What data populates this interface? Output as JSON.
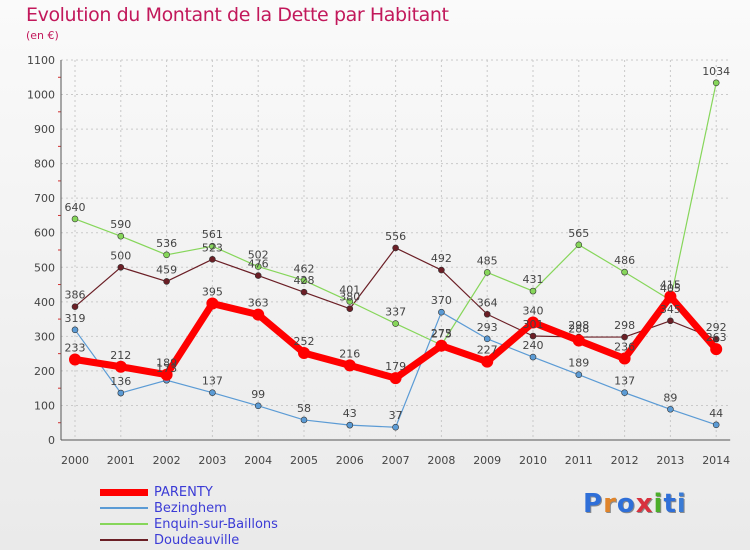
{
  "title": "Evolution du Montant de la Dette par Habitant",
  "subtitle": "(en €)",
  "brand": "Proxiti",
  "chart_data": {
    "type": "line",
    "title": "Evolution du Montant de la Dette par Habitant",
    "ylabel": "(en €)",
    "ylim": [
      0,
      1100
    ],
    "yticks": [
      0,
      100,
      200,
      300,
      400,
      500,
      600,
      700,
      800,
      900,
      1000,
      1100
    ],
    "grid": true,
    "legend_position": "bottom-left",
    "categories": [
      "2000",
      "2001",
      "2002",
      "2003",
      "2004",
      "2005",
      "2006",
      "2007",
      "2008",
      "2009",
      "2010",
      "2011",
      "2012",
      "2013",
      "2014"
    ],
    "series": [
      {
        "name": "Doudeauville",
        "color": "#6b1f26",
        "values": [
          386,
          500,
          459,
          523,
          476,
          428,
          380,
          556,
          492,
          364,
          301,
          298,
          298,
          345,
          292
        ]
      },
      {
        "name": "Enquin-sur-Baillons",
        "color": "#86d65a",
        "values": [
          640,
          590,
          536,
          561,
          502,
          462,
          401,
          337,
          275,
          485,
          431,
          565,
          486,
          405,
          1034
        ]
      },
      {
        "name": "Bezinghem",
        "color": "#5b9bd5",
        "values": [
          319,
          136,
          173,
          137,
          99,
          58,
          43,
          37,
          370,
          293,
          240,
          189,
          137,
          89,
          44
        ]
      },
      {
        "name": "PARENTY",
        "color": "#ff0000",
        "values": [
          233,
          212,
          189,
          395,
          363,
          252,
          216,
          179,
          273,
          227,
          340,
          288,
          236,
          415,
          263
        ]
      }
    ],
    "legend_order": [
      "PARENTY",
      "Bezinghem",
      "Enquin-sur-Baillons",
      "Doudeauville"
    ]
  }
}
